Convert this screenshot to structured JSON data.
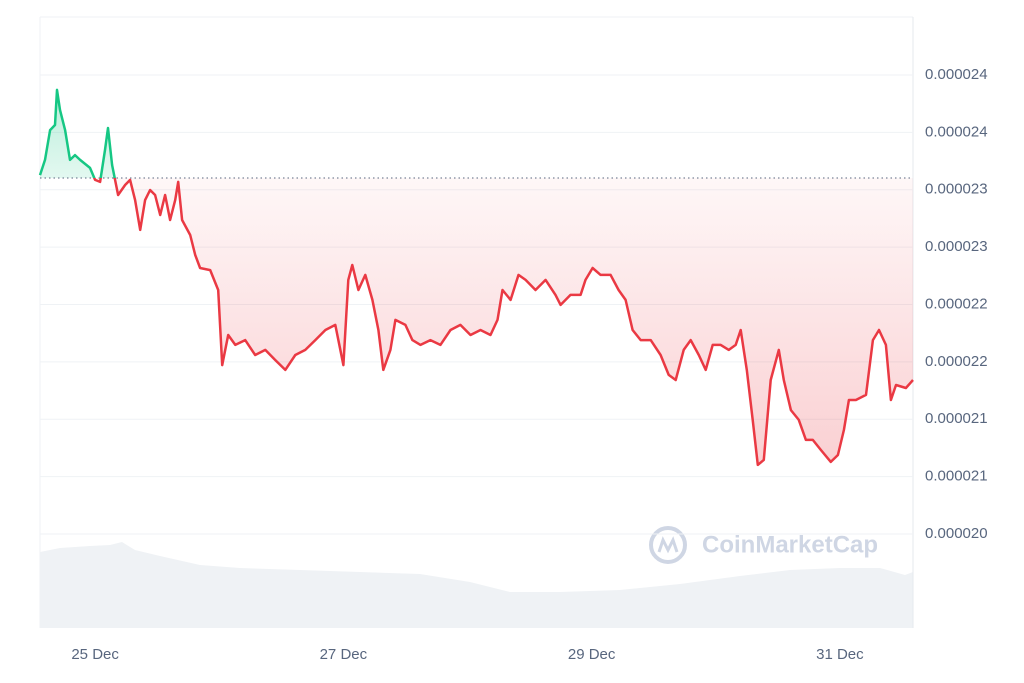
{
  "chart_data": {
    "type": "line",
    "watermark": "CoinMarketCap",
    "baseline": 2.31024e-05,
    "colors": {
      "up": "#16c784",
      "down": "#ea3943"
    },
    "grid": true,
    "xlim": [
      24.556,
      31.589
    ],
    "xticks": [
      {
        "value": 25,
        "label": "25 Dec"
      },
      {
        "value": 27,
        "label": "27 Dec"
      },
      {
        "value": 29,
        "label": "29 Dec"
      },
      {
        "value": 31,
        "label": "31 Dec"
      }
    ],
    "ylim": [
      1.91806e-05,
      2.45055e-05
    ],
    "yticks": [
      {
        "value": 2e-05,
        "label": "0.000020"
      },
      {
        "value": 2.05e-05,
        "label": "0.000021"
      },
      {
        "value": 2.1e-05,
        "label": "0.000021"
      },
      {
        "value": 2.15e-05,
        "label": "0.000022"
      },
      {
        "value": 2.2e-05,
        "label": "0.000022"
      },
      {
        "value": 2.25e-05,
        "label": "0.000023"
      },
      {
        "value": 2.3e-05,
        "label": "0.000023"
      },
      {
        "value": 2.35e-05,
        "label": "0.000024"
      },
      {
        "value": 2.4e-05,
        "label": "0.000024"
      }
    ],
    "x": [
      24.556,
      24.596,
      24.637,
      24.677,
      24.693,
      24.717,
      24.758,
      24.798,
      24.838,
      24.879,
      24.959,
      25.0,
      25.04,
      25.08,
      25.104,
      25.137,
      25.185,
      25.242,
      25.282,
      25.322,
      25.363,
      25.403,
      25.443,
      25.483,
      25.524,
      25.564,
      25.604,
      25.645,
      25.669,
      25.701,
      25.766,
      25.806,
      25.846,
      25.927,
      25.992,
      26.024,
      26.072,
      26.129,
      26.209,
      26.29,
      26.371,
      26.451,
      26.532,
      26.613,
      26.693,
      26.774,
      26.855,
      26.935,
      27.0,
      27.04,
      27.072,
      27.121,
      27.177,
      27.234,
      27.282,
      27.322,
      27.379,
      27.419,
      27.5,
      27.556,
      27.621,
      27.701,
      27.782,
      27.863,
      27.943,
      28.024,
      28.105,
      28.185,
      28.242,
      28.282,
      28.347,
      28.411,
      28.468,
      28.548,
      28.629,
      28.709,
      28.75,
      28.83,
      28.911,
      28.951,
      29.008,
      29.072,
      29.153,
      29.217,
      29.274,
      29.33,
      29.395,
      29.476,
      29.556,
      29.621,
      29.677,
      29.742,
      29.798,
      29.863,
      29.919,
      29.975,
      30.04,
      30.105,
      30.161,
      30.201,
      30.25,
      30.298,
      30.339,
      30.387,
      30.443,
      30.508,
      30.548,
      30.605,
      30.669,
      30.726,
      30.782,
      30.847,
      30.927,
      30.984,
      31.032,
      31.073,
      31.129,
      31.21,
      31.266,
      31.315,
      31.371,
      31.411,
      31.452,
      31.532,
      31.589
    ],
    "values": [
      2.3128e-05,
      2.326e-05,
      2.352e-05,
      2.3564e-05,
      2.387e-05,
      2.3696e-05,
      2.352e-05,
      2.326e-05,
      2.3302e-05,
      2.326e-05,
      2.319e-05,
      2.3086e-05,
      2.3068e-05,
      2.3346e-05,
      2.3538e-05,
      2.3216e-05,
      2.2954e-05,
      2.3042e-05,
      2.3086e-05,
      2.291e-05,
      2.265e-05,
      2.291e-05,
      2.2998e-05,
      2.2954e-05,
      2.278e-05,
      2.2954e-05,
      2.2736e-05,
      2.291e-05,
      2.3068e-05,
      2.2736e-05,
      2.2606e-05,
      2.2432e-05,
      2.2318e-05,
      2.23e-05,
      2.2126e-05,
      2.1472e-05,
      2.1734e-05,
      2.1648e-05,
      2.169e-05,
      2.156e-05,
      2.1604e-05,
      2.1516e-05,
      2.143e-05,
      2.156e-05,
      2.1604e-05,
      2.169e-05,
      2.1778e-05,
      2.1822e-05,
      2.1472e-05,
      2.2214e-05,
      2.2344e-05,
      2.2126e-05,
      2.2258e-05,
      2.204e-05,
      2.1778e-05,
      2.143e-05,
      2.1604e-05,
      2.1866e-05,
      2.1822e-05,
      2.169e-05,
      2.1648e-05,
      2.169e-05,
      2.1648e-05,
      2.1778e-05,
      2.1822e-05,
      2.1734e-05,
      2.1778e-05,
      2.1734e-05,
      2.1866e-05,
      2.2126e-05,
      2.204e-05,
      2.2258e-05,
      2.2214e-05,
      2.2126e-05,
      2.2214e-05,
      2.2084e-05,
      2.1996e-05,
      2.2084e-05,
      2.2084e-05,
      2.2214e-05,
      2.2318e-05,
      2.2258e-05,
      2.2258e-05,
      2.2126e-05,
      2.204e-05,
      2.1778e-05,
      2.169e-05,
      2.169e-05,
      2.156e-05,
      2.1386e-05,
      2.1342e-05,
      2.1604e-05,
      2.169e-05,
      2.156e-05,
      2.143e-05,
      2.1648e-05,
      2.1648e-05,
      2.1604e-05,
      2.1648e-05,
      2.1778e-05,
      2.143e-05,
      2.0994e-05,
      2.0602e-05,
      2.0646e-05,
      2.1342e-05,
      2.1604e-05,
      2.1342e-05,
      2.108e-05,
      2.0994e-05,
      2.082e-05,
      2.082e-05,
      2.0732e-05,
      2.0628e-05,
      2.0688e-05,
      2.0906e-05,
      2.1168e-05,
      2.1168e-05,
      2.1212e-05,
      2.169e-05,
      2.1778e-05,
      2.1648e-05,
      2.1168e-05,
      2.1298e-05,
      2.1272e-05,
      2.1342e-05
    ]
  }
}
